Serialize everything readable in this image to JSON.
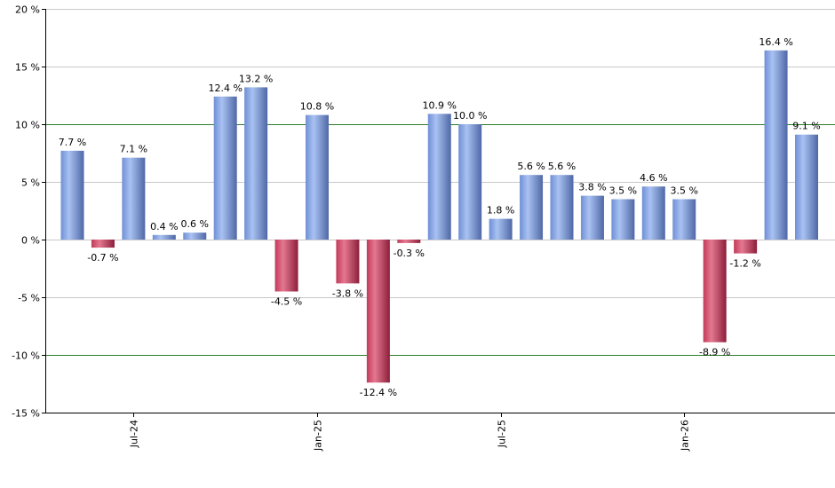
{
  "chart_data": {
    "type": "bar",
    "series": [
      {
        "values": [
          7.7,
          -0.7,
          7.1,
          0.4,
          0.6,
          12.4,
          13.2,
          -4.5,
          10.8,
          -3.8,
          -12.4,
          -0.3,
          10.9,
          10.0,
          1.8,
          5.6,
          5.6,
          3.8,
          3.5,
          4.6,
          3.5,
          -8.9,
          -1.2,
          16.4,
          9.1
        ],
        "labels": [
          "7.7 %",
          "-0.7 %",
          "7.1 %",
          "0.4 %",
          "0.6 %",
          "12.4 %",
          "13.2 %",
          "-4.5 %",
          "10.8 %",
          "-3.8 %",
          "-12.4 %",
          "-0.3 %",
          "10.9 %",
          "10.0 %",
          "1.8 %",
          "5.6 %",
          "5.6 %",
          "3.8 %",
          "3.5 %",
          "4.6 %",
          "3.5 %",
          "-8.9 %",
          "-1.2 %",
          "16.4 %",
          "9.1 %"
        ]
      }
    ],
    "x_ticks": [
      {
        "index": 2,
        "label": "Jul-24"
      },
      {
        "index": 8,
        "label": "Jan-25"
      },
      {
        "index": 14,
        "label": "Jul-25"
      },
      {
        "index": 20,
        "label": "Jan-26"
      }
    ],
    "ylim": [
      -15,
      20
    ],
    "y_ticks": [
      20,
      15,
      10,
      5,
      0,
      -5,
      -10,
      -15
    ],
    "y_tick_labels": [
      "20 %",
      "15 %",
      "10 %",
      "5 %",
      "0 %",
      "-5 %",
      "-10 %",
      "-15 %"
    ],
    "reference_lines": [
      10,
      -10
    ],
    "grid": true,
    "colors": {
      "positive_bar": "#6f8fd6",
      "positive_bar_light": "#a9c2f2",
      "positive_bar_dark": "#4f68a6",
      "negative_bar": "#c23a5a",
      "negative_bar_light": "#e47890",
      "negative_bar_dark": "#8c1e3a",
      "grid": "#c8c8c8",
      "reference_line": "#2e7d2e",
      "axis": "#000000"
    }
  }
}
